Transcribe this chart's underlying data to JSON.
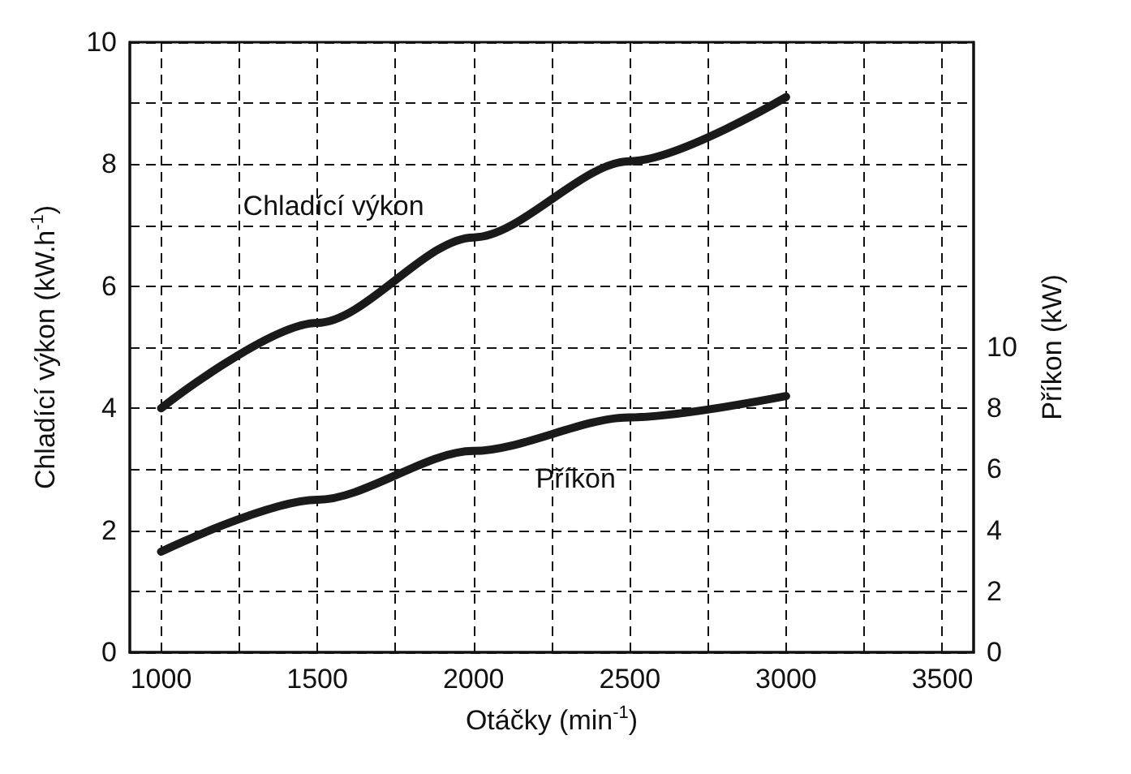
{
  "chart_data": {
    "type": "line",
    "xlabel": "Otáčky (min$^{-1}$)",
    "ylabel": "Chladící výkon (kW.h$^{-1}$)",
    "y2label": "Příkon (kW)",
    "x": [
      1000,
      1500,
      2000,
      2500,
      3000
    ],
    "series": [
      {
        "name": "Chladící výkon",
        "color": "#1a1a1a",
        "values": [
          4.0,
          5.4,
          6.8,
          8.05,
          9.1
        ]
      },
      {
        "name": "Příkon",
        "color": "#1a1a1a",
        "axis": "y2",
        "values": [
          3.3,
          5.0,
          6.6,
          7.7,
          8.4
        ]
      }
    ],
    "xlim": [
      900,
      3600
    ],
    "xticks": [
      1000,
      {
        "value": 1250,
        "label": null
      },
      1500,
      {
        "value": 1750,
        "label": null
      },
      2000,
      {
        "value": 2250,
        "label": null
      },
      2500,
      {
        "value": 2750,
        "label": null
      },
      3000,
      {
        "value": 3250,
        "label": null
      },
      3500
    ],
    "ylim": [
      0,
      10
    ],
    "yticks": [
      0,
      {
        "value": 1,
        "label": null
      },
      2,
      {
        "value": 3,
        "label": null
      },
      4,
      {
        "value": 5,
        "label": null
      },
      6,
      {
        "value": 7,
        "label": null
      },
      8,
      {
        "value": 9,
        "label": null
      },
      10
    ],
    "y2lim": [
      0,
      20
    ],
    "y2ticks": [
      0,
      2,
      4,
      6,
      8,
      10
    ],
    "grid": true,
    "legend": false,
    "marker": "none",
    "line_style": "solid"
  }
}
